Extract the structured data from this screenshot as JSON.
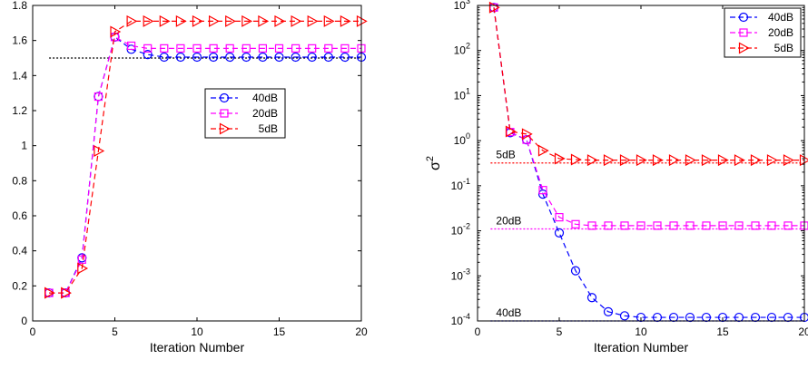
{
  "chart_data": [
    {
      "type": "line",
      "title": "",
      "xlabel": "Iteration Number",
      "ylabel": "",
      "xlim": [
        0,
        20
      ],
      "ylim": [
        0,
        1.8
      ],
      "yscale": "linear",
      "xticks": [
        "0",
        "5",
        "10",
        "15",
        "20"
      ],
      "yticks": [
        "0",
        "0.2",
        "0.4",
        "0.6",
        "0.8",
        "1",
        "1.2",
        "1.4",
        "1.6",
        "1.8"
      ],
      "grid": false,
      "legend_position": "center-right",
      "x": [
        1,
        2,
        3,
        4,
        5,
        6,
        7,
        8,
        9,
        10,
        11,
        12,
        13,
        14,
        15,
        16,
        17,
        18,
        19,
        20
      ],
      "series": [
        {
          "name": "40dB",
          "color": "#0000ff",
          "marker": "circle",
          "values": [
            0.16,
            0.16,
            0.36,
            1.28,
            1.62,
            1.55,
            1.52,
            1.505,
            1.505,
            1.505,
            1.505,
            1.505,
            1.505,
            1.505,
            1.505,
            1.505,
            1.505,
            1.505,
            1.505,
            1.505
          ]
        },
        {
          "name": "20dB",
          "color": "#ff00ff",
          "marker": "square",
          "values": [
            0.16,
            0.16,
            0.35,
            1.28,
            1.62,
            1.57,
            1.555,
            1.555,
            1.555,
            1.555,
            1.555,
            1.555,
            1.555,
            1.555,
            1.555,
            1.555,
            1.555,
            1.555,
            1.555,
            1.555
          ]
        },
        {
          "name": "5dB",
          "color": "#ff0000",
          "marker": "triangle-right",
          "values": [
            0.16,
            0.16,
            0.3,
            0.97,
            1.65,
            1.71,
            1.71,
            1.71,
            1.71,
            1.71,
            1.71,
            1.71,
            1.71,
            1.71,
            1.71,
            1.71,
            1.71,
            1.71,
            1.71,
            1.71
          ]
        }
      ],
      "reference_lines": [
        {
          "y": 1.5,
          "x_range": [
            1,
            20
          ],
          "color": "#000000",
          "style": "dotted"
        }
      ]
    },
    {
      "type": "line",
      "title": "",
      "xlabel": "Iteration Number",
      "ylabel": "σ2",
      "ylabel_base": "σ",
      "ylabel_sup": "2",
      "xlim": [
        0,
        20
      ],
      "ylim": [
        0.0001,
        1000
      ],
      "yscale": "log",
      "xticks": [
        "0",
        "5",
        "10",
        "15",
        "20"
      ],
      "yticks": [
        {
          "base": "10",
          "exp": "-4"
        },
        {
          "base": "10",
          "exp": "-3"
        },
        {
          "base": "10",
          "exp": "-2"
        },
        {
          "base": "10",
          "exp": "-1"
        },
        {
          "base": "10",
          "exp": "0"
        },
        {
          "base": "10",
          "exp": "1"
        },
        {
          "base": "10",
          "exp": "2"
        },
        {
          "base": "10",
          "exp": "3"
        }
      ],
      "grid": false,
      "legend_position": "top-right",
      "x": [
        1,
        2,
        3,
        4,
        5,
        6,
        7,
        8,
        9,
        10,
        11,
        12,
        13,
        14,
        15,
        16,
        17,
        18,
        19,
        20
      ],
      "series": [
        {
          "name": "40dB",
          "color": "#0000ff",
          "marker": "circle",
          "values": [
            900,
            1.5,
            1.05,
            0.065,
            0.009,
            0.0013,
            0.00033,
            0.00016,
            0.00013,
            0.00012,
            0.00012,
            0.00012,
            0.00012,
            0.00012,
            0.00012,
            0.00012,
            0.00012,
            0.00012,
            0.00012,
            0.00012
          ]
        },
        {
          "name": "20dB",
          "color": "#ff00ff",
          "marker": "square",
          "values": [
            900,
            1.55,
            1.05,
            0.08,
            0.02,
            0.014,
            0.013,
            0.013,
            0.013,
            0.013,
            0.013,
            0.013,
            0.013,
            0.013,
            0.013,
            0.013,
            0.013,
            0.013,
            0.013,
            0.013
          ]
        },
        {
          "name": "5dB",
          "color": "#ff0000",
          "marker": "triangle-right",
          "values": [
            900,
            1.6,
            1.4,
            0.6,
            0.4,
            0.38,
            0.37,
            0.37,
            0.37,
            0.37,
            0.37,
            0.37,
            0.37,
            0.37,
            0.37,
            0.37,
            0.37,
            0.37,
            0.37,
            0.37
          ]
        }
      ],
      "reference_lines": [
        {
          "y": 0.32,
          "x_range": [
            0.8,
            20
          ],
          "color": "#ff0000",
          "style": "dotted",
          "label": "5dB"
        },
        {
          "y": 0.011,
          "x_range": [
            0.8,
            20
          ],
          "color": "#ff00ff",
          "style": "dotted",
          "label": "20dB"
        },
        {
          "y": 0.0001,
          "x_range": [
            0.8,
            20
          ],
          "color": "#0000ff",
          "style": "dotted",
          "label": "40dB"
        }
      ]
    }
  ]
}
